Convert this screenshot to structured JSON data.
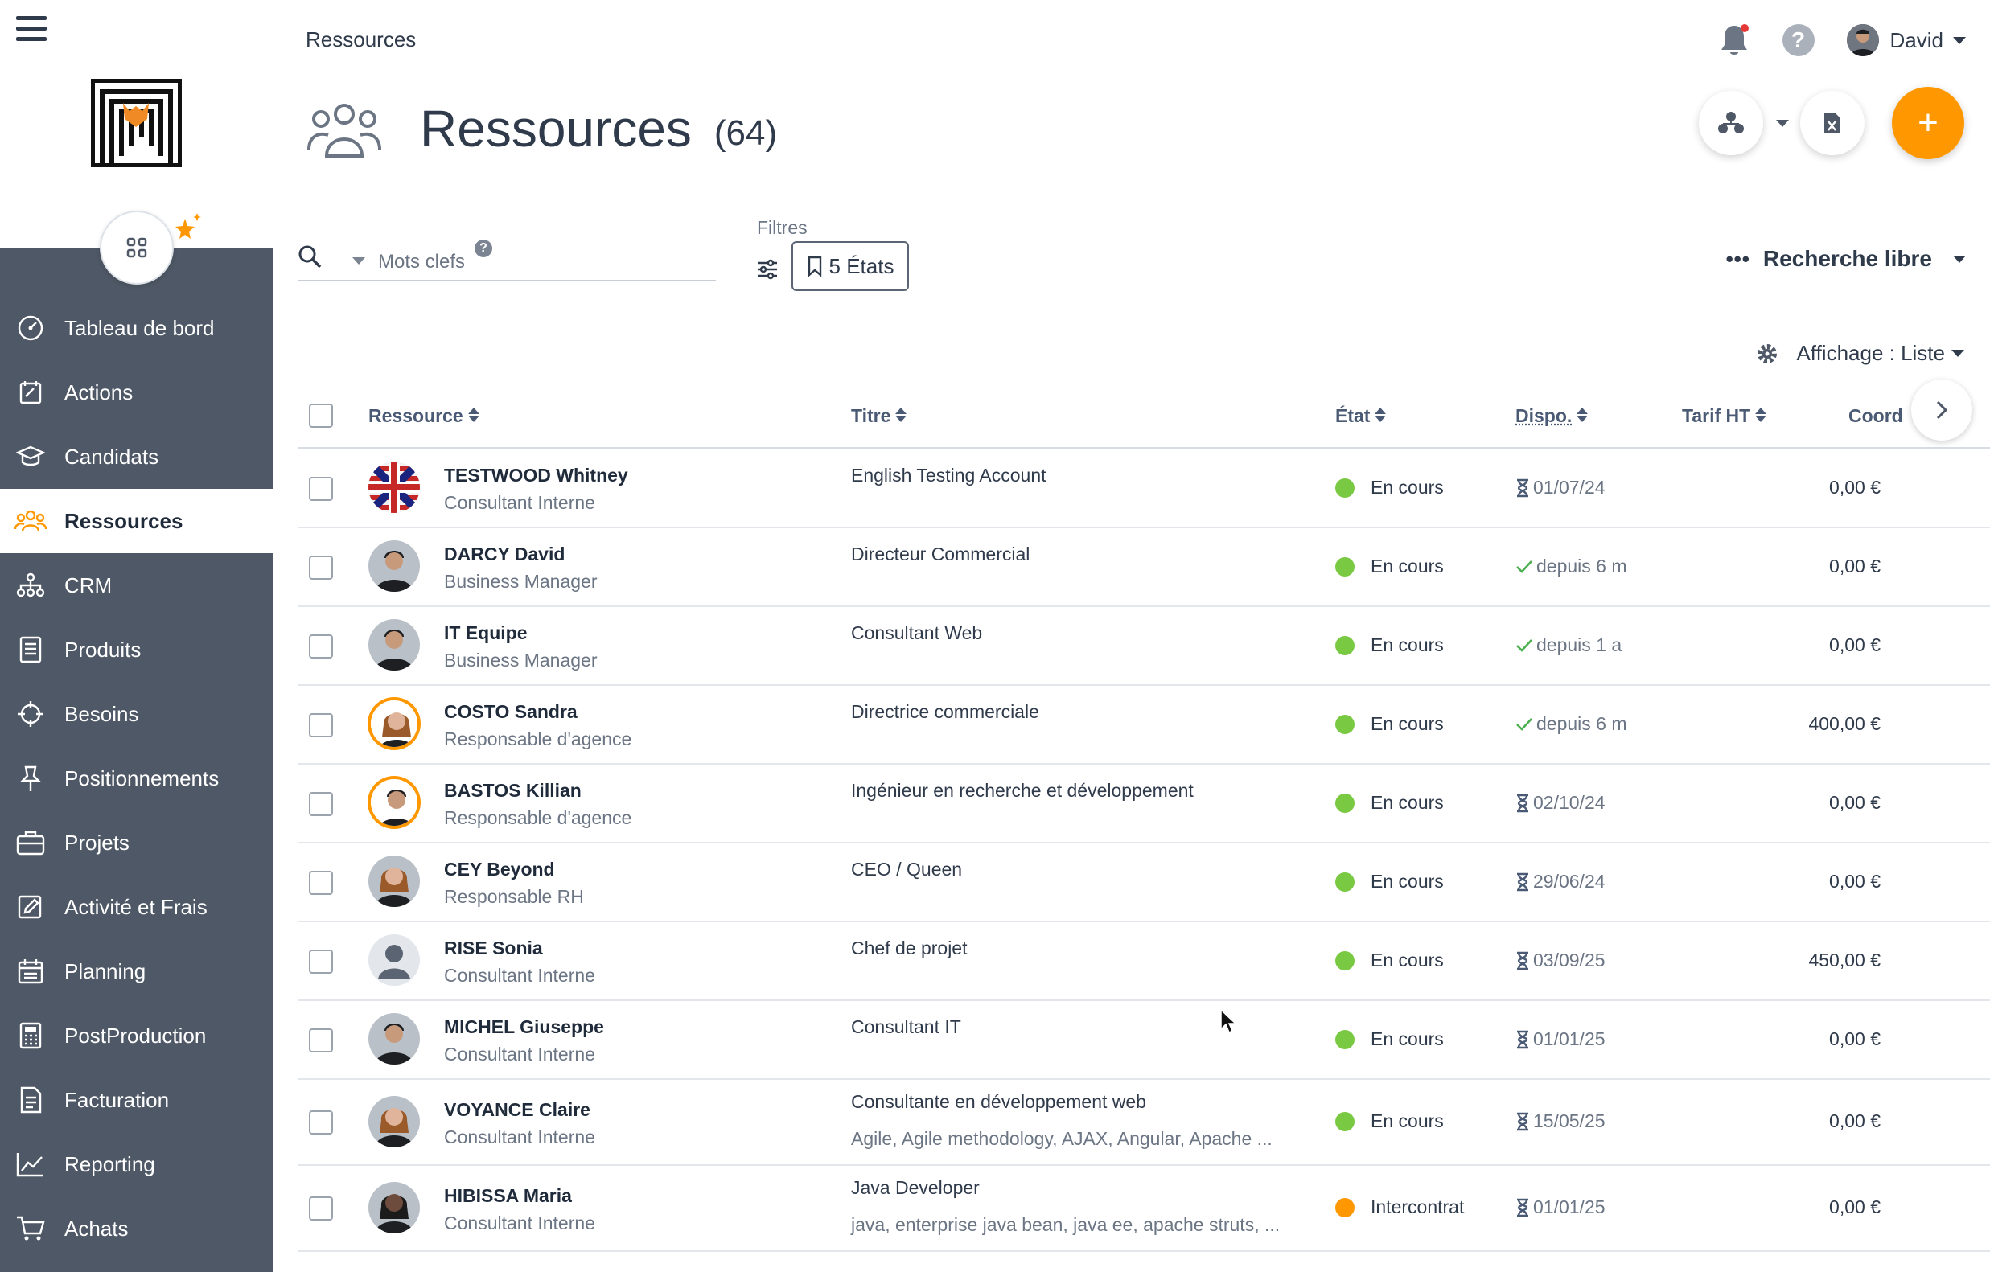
{
  "breadcrumb": "Ressources",
  "page": {
    "title": "Ressources",
    "count": "(64)"
  },
  "user": {
    "name": "David"
  },
  "nav": [
    {
      "label": "Tableau de bord",
      "icon": "dashboard-icon"
    },
    {
      "label": "Actions",
      "icon": "actions-icon"
    },
    {
      "label": "Candidats",
      "icon": "graduation-cap-icon"
    },
    {
      "label": "Ressources",
      "icon": "people-icon",
      "active": true
    },
    {
      "label": "CRM",
      "icon": "org-chart-icon"
    },
    {
      "label": "Produits",
      "icon": "document-icon"
    },
    {
      "label": "Besoins",
      "icon": "target-icon"
    },
    {
      "label": "Positionnements",
      "icon": "pin-icon"
    },
    {
      "label": "Projets",
      "icon": "briefcase-icon"
    },
    {
      "label": "Activité et Frais",
      "icon": "edit-icon"
    },
    {
      "label": "Planning",
      "icon": "calendar-icon"
    },
    {
      "label": "PostProduction",
      "icon": "calculator-icon"
    },
    {
      "label": "Facturation",
      "icon": "invoice-icon"
    },
    {
      "label": "Reporting",
      "icon": "chart-line-icon"
    },
    {
      "label": "Achats",
      "icon": "cart-icon"
    }
  ],
  "search": {
    "keywords_label": "Mots clefs",
    "help": "?"
  },
  "filters": {
    "label": "Filtres",
    "etats_button": "5 États"
  },
  "recherche_libre": {
    "dots": "•••",
    "label": "Recherche libre"
  },
  "affichage": "Affichage : Liste",
  "add_label": "+",
  "table": {
    "headers": {
      "ressource": "Ressource",
      "titre": "Titre",
      "etat": "État",
      "dispo": "Dispo.",
      "tarif": "Tarif HT",
      "coord": "Coord"
    },
    "rows": [
      {
        "name": "TESTWOOD Whitney",
        "role": "Consultant Interne",
        "titre": "English Testing Account",
        "skills": "",
        "etat": "En cours",
        "etat_color": "#7ac943",
        "dispo": "01/07/24",
        "dispo_type": "hourglass",
        "tarif": "0,00 €",
        "phone_active": false,
        "avatar": "flag"
      },
      {
        "name": "DARCY David",
        "role": "Business Manager",
        "titre": "Directeur Commercial",
        "skills": "",
        "etat": "En cours",
        "etat_color": "#7ac943",
        "dispo": "depuis 6 m",
        "dispo_type": "check",
        "tarif": "0,00 €",
        "phone_active": true,
        "avatar": "man"
      },
      {
        "name": "IT Equipe",
        "role": "Business Manager",
        "titre": "Consultant Web",
        "skills": "",
        "etat": "En cours",
        "etat_color": "#7ac943",
        "dispo": "depuis 1 a",
        "dispo_type": "check",
        "tarif": "0,00 €",
        "phone_active": true,
        "avatar": "man"
      },
      {
        "name": "COSTO Sandra",
        "role": "Responsable d'agence",
        "titre": "Directrice commerciale",
        "skills": "",
        "etat": "En cours",
        "etat_color": "#7ac943",
        "dispo": "depuis 6 m",
        "dispo_type": "check",
        "tarif": "400,00 €",
        "phone_active": false,
        "avatar": "woman-ring"
      },
      {
        "name": "BASTOS Killian",
        "role": "Responsable d'agence",
        "titre": "Ingénieur en recherche et développement",
        "skills": "",
        "etat": "En cours",
        "etat_color": "#7ac943",
        "dispo": "02/10/24",
        "dispo_type": "hourglass",
        "tarif": "0,00 €",
        "phone_active": true,
        "avatar": "man-ring"
      },
      {
        "name": "CEY Beyond",
        "role": "Responsable RH",
        "titre": "CEO / Queen",
        "skills": "",
        "etat": "En cours",
        "etat_color": "#7ac943",
        "dispo": "29/06/24",
        "dispo_type": "hourglass",
        "tarif": "0,00 €",
        "phone_active": false,
        "avatar": "woman"
      },
      {
        "name": "RISE Sonia",
        "role": "Consultant Interne",
        "titre": "Chef de projet",
        "skills": "",
        "etat": "En cours",
        "etat_color": "#7ac943",
        "dispo": "03/09/25",
        "dispo_type": "hourglass",
        "tarif": "450,00 €",
        "phone_active": true,
        "avatar": "placeholder"
      },
      {
        "name": "MICHEL Giuseppe",
        "role": "Consultant Interne",
        "titre": "Consultant IT",
        "skills": "",
        "etat": "En cours",
        "etat_color": "#7ac943",
        "dispo": "01/01/25",
        "dispo_type": "hourglass",
        "tarif": "0,00 €",
        "phone_active": false,
        "avatar": "man"
      },
      {
        "name": "VOYANCE Claire",
        "role": "Consultant Interne",
        "titre": "Consultante en développement web",
        "skills": "Agile, Agile methodology, AJAX, Angular, Apache ...",
        "etat": "En cours",
        "etat_color": "#7ac943",
        "dispo": "15/05/25",
        "dispo_type": "hourglass",
        "tarif": "0,00 €",
        "phone_active": true,
        "avatar": "woman"
      },
      {
        "name": "HIBISSA Maria",
        "role": "Consultant Interne",
        "titre": "Java Developer",
        "skills": "java, enterprise java bean, java ee, apache struts, ...",
        "etat": "Intercontrat",
        "etat_color": "#ff9800",
        "dispo": "01/01/25",
        "dispo_type": "hourglass",
        "tarif": "0,00 €",
        "phone_active": true,
        "avatar": "woman-dark"
      }
    ]
  },
  "colors": {
    "sidebar": "#4f5866",
    "accent": "#ff9800",
    "status_green": "#7ac943",
    "status_orange": "#ff9800"
  }
}
